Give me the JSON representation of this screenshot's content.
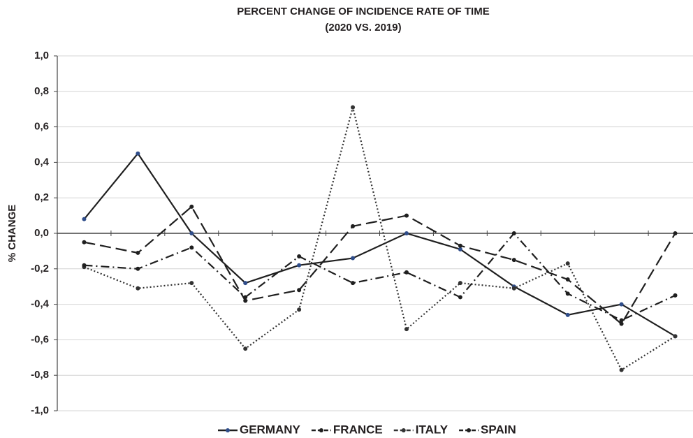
{
  "chart_data": {
    "type": "line",
    "title": "PERCENT CHANGE OF INCIDENCE RATE OF TIME",
    "subtitle": "(2020 VS. 2019)",
    "y_label": "% CHANGE",
    "categories": [
      null,
      null,
      null,
      null,
      null,
      null,
      null,
      null,
      null,
      null,
      null,
      null
    ],
    "series": [
      {
        "name": "GERMANY",
        "color": "#1f1f1f",
        "marker_color": "#2f4d8a",
        "dash": "none",
        "values": [
          0.08,
          0.45,
          0.0,
          -0.28,
          -0.18,
          -0.14,
          0.0,
          -0.09,
          -0.3,
          -0.46,
          -0.4,
          -0.58
        ]
      },
      {
        "name": "FRANCE",
        "color": "#1f1f1f",
        "marker_color": "#1f1f1f",
        "dash": "16 7",
        "values": [
          -0.05,
          -0.11,
          0.15,
          -0.38,
          -0.32,
          0.04,
          0.1,
          -0.07,
          -0.15,
          -0.26,
          -0.51,
          0.0
        ]
      },
      {
        "name": "ITALY",
        "color": "#333333",
        "marker_color": "#333333",
        "dash": "2 3",
        "values": [
          -0.19,
          -0.31,
          -0.28,
          -0.65,
          -0.43,
          0.71,
          -0.54,
          -0.28,
          -0.31,
          -0.17,
          -0.77,
          -0.58
        ]
      },
      {
        "name": "SPAIN",
        "color": "#1f1f1f",
        "marker_color": "#1f1f1f",
        "dash": "12 5 2 5",
        "values": [
          -0.18,
          -0.2,
          -0.08,
          -0.36,
          -0.13,
          -0.28,
          -0.22,
          -0.36,
          0.0,
          -0.34,
          -0.49,
          -0.35
        ]
      }
    ],
    "ylim": [
      -1.0,
      1.0
    ],
    "yticks": [
      {
        "value": -1.0,
        "label": "-1,0"
      },
      {
        "value": -0.8,
        "label": "-0,8"
      },
      {
        "value": -0.6,
        "label": "-0,6"
      },
      {
        "value": -0.4,
        "label": "-0,4"
      },
      {
        "value": -0.2,
        "label": "-0,2"
      },
      {
        "value": 0.0,
        "label": "0,0"
      },
      {
        "value": 0.2,
        "label": "0,2"
      },
      {
        "value": 0.4,
        "label": "0,4"
      },
      {
        "value": 0.6,
        "label": "0,6"
      },
      {
        "value": 0.8,
        "label": "0,8"
      },
      {
        "value": 1.0,
        "label": "1,0"
      }
    ],
    "grid": true,
    "legend": "bottom"
  }
}
